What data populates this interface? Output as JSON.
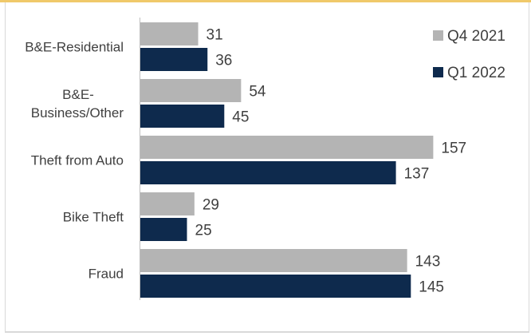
{
  "chart_data": {
    "type": "bar",
    "orientation": "horizontal",
    "categories": [
      [
        "B&E-Residential"
      ],
      [
        "B&E-",
        "Business/Other"
      ],
      [
        "Theft from Auto"
      ],
      [
        "Bike Theft"
      ],
      [
        "Fraud"
      ]
    ],
    "series": [
      {
        "name": "Q4 2021",
        "color": "#b4b4b4",
        "values": [
          31,
          54,
          157,
          29,
          143
        ]
      },
      {
        "name": "Q1 2022",
        "color": "#0e2a4d",
        "values": [
          36,
          45,
          137,
          25,
          145
        ]
      }
    ],
    "xlim": [
      0,
      170
    ],
    "grid": false,
    "legend": "top-right",
    "data_labels": true
  }
}
